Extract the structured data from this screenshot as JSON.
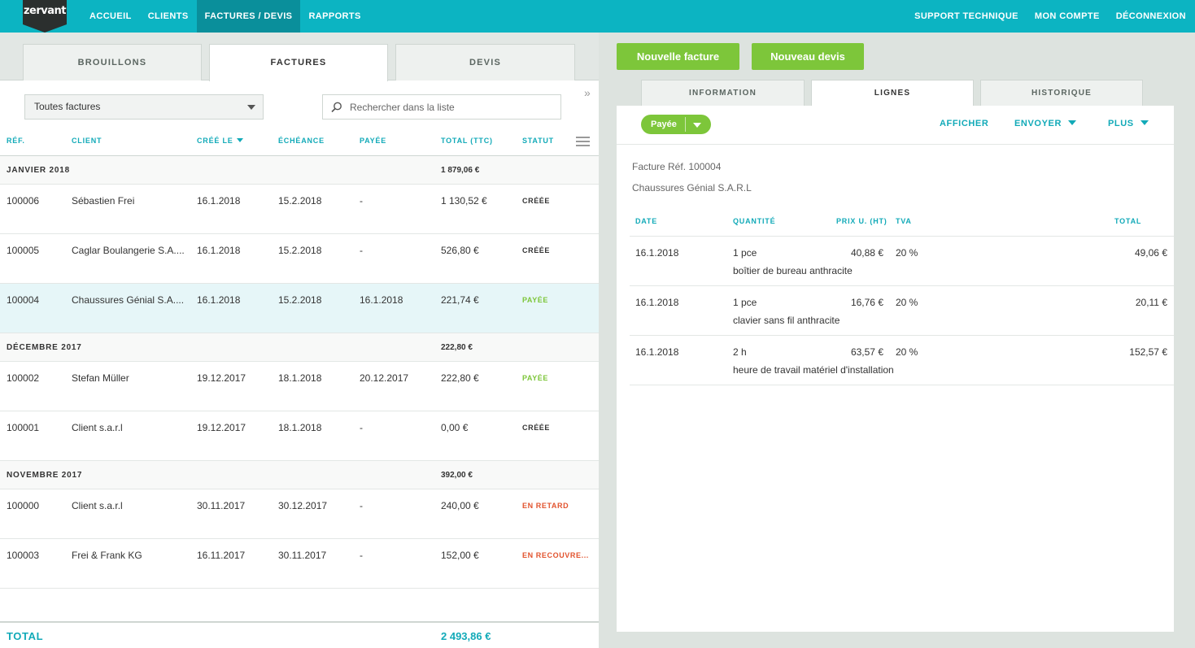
{
  "app": {
    "logo_text": "zervant",
    "nav_left": [
      "ACCUEIL",
      "CLIENTS",
      "FACTURES / DEVIS",
      "RAPPORTS"
    ],
    "nav_right": [
      "SUPPORT TECHNIQUE",
      "MON COMPTE",
      "DÉCONNEXION"
    ],
    "active_nav": "FACTURES / DEVIS",
    "accent_color": "#0cb4c2",
    "green_color": "#7dc63a"
  },
  "list": {
    "tabs": [
      "BROUILLONS",
      "FACTURES",
      "DEVIS"
    ],
    "active_tab": "FACTURES",
    "filter_value": "Toutes factures",
    "search_placeholder": "Rechercher dans la liste",
    "collapse_glyph": "»",
    "columns": {
      "ref": "RÉF.",
      "client": "CLIENT",
      "created": "CRÉÉ LE",
      "due": "ÉCHÉANCE",
      "paid": "PAYÉE",
      "total": "TOTAL (TTC)",
      "status": "STATUT"
    },
    "groups": [
      {
        "label": "JANVIER 2018",
        "total": "1 879,06 €",
        "rows": [
          {
            "ref": "100006",
            "client": "Sébastien Frei",
            "created": "16.1.2018",
            "due": "15.2.2018",
            "paid": "-",
            "total": "1 130,52 €",
            "status": "CRÉÉE",
            "status_color": "#333333",
            "selected": false
          },
          {
            "ref": "100005",
            "client": "Caglar Boulangerie S.A....",
            "created": "16.1.2018",
            "due": "15.2.2018",
            "paid": "-",
            "total": "526,80 €",
            "status": "CRÉÉE",
            "status_color": "#333333",
            "selected": false
          },
          {
            "ref": "100004",
            "client": "Chaussures Génial S.A....",
            "created": "16.1.2018",
            "due": "15.2.2018",
            "paid": "16.1.2018",
            "total": "221,74 €",
            "status": "PAYÉE",
            "status_color": "#7dc63a",
            "selected": true
          }
        ]
      },
      {
        "label": "DÉCEMBRE 2017",
        "total": "222,80 €",
        "rows": [
          {
            "ref": "100002",
            "client": "Stefan Müller",
            "created": "19.12.2017",
            "due": "18.1.2018",
            "paid": "20.12.2017",
            "total": "222,80 €",
            "status": "PAYÉE",
            "status_color": "#7dc63a",
            "selected": false
          },
          {
            "ref": "100001",
            "client": "Client s.a.r.l",
            "created": "19.12.2017",
            "due": "18.1.2018",
            "paid": "-",
            "total": "0,00 €",
            "status": "CRÉÉE",
            "status_color": "#333333",
            "selected": false
          }
        ]
      },
      {
        "label": "NOVEMBRE 2017",
        "total": "392,00 €",
        "rows": [
          {
            "ref": "100000",
            "client": "Client s.a.r.l",
            "created": "30.11.2017",
            "due": "30.12.2017",
            "paid": "-",
            "total": "240,00 €",
            "status": "EN RETARD",
            "status_color": "#e2532e",
            "selected": false
          },
          {
            "ref": "100003",
            "client": "Frei & Frank KG",
            "created": "16.11.2017",
            "due": "30.11.2017",
            "paid": "-",
            "total": "152,00 €",
            "status": "EN RECOUVRE...",
            "status_color": "#e2532e",
            "selected": false
          }
        ]
      }
    ],
    "total_label": "TOTAL",
    "total_value": "2 493,86 €"
  },
  "detail": {
    "new_invoice": "Nouvelle facture",
    "new_quote": "Nouveau devis",
    "tabs": [
      "INFORMATION",
      "LIGNES",
      "HISTORIQUE"
    ],
    "active_tab": "LIGNES",
    "status_pill": "Payée",
    "actions": {
      "show": "AFFICHER",
      "send": "ENVOYER",
      "more": "PLUS"
    },
    "invoice_ref": "Facture Réf. 100004",
    "client_name": "Chaussures Génial S.A.R.L",
    "line_columns": {
      "date": "DATE",
      "qty": "QUANTITÉ",
      "price": "PRIX U. (HT)",
      "vat": "TVA",
      "total": "TOTAL"
    },
    "lines": [
      {
        "date": "16.1.2018",
        "qty": "1 pce",
        "price": "40,88 €",
        "vat": "20 %",
        "total": "49,06 €",
        "desc": "boîtier de bureau anthracite"
      },
      {
        "date": "16.1.2018",
        "qty": "1 pce",
        "price": "16,76 €",
        "vat": "20 %",
        "total": "20,11 €",
        "desc": "clavier sans fil anthracite"
      },
      {
        "date": "16.1.2018",
        "qty": "2 h",
        "price": "63,57 €",
        "vat": "20 %",
        "total": "152,57 €",
        "desc": "heure de travail matériel d'installation"
      }
    ]
  }
}
